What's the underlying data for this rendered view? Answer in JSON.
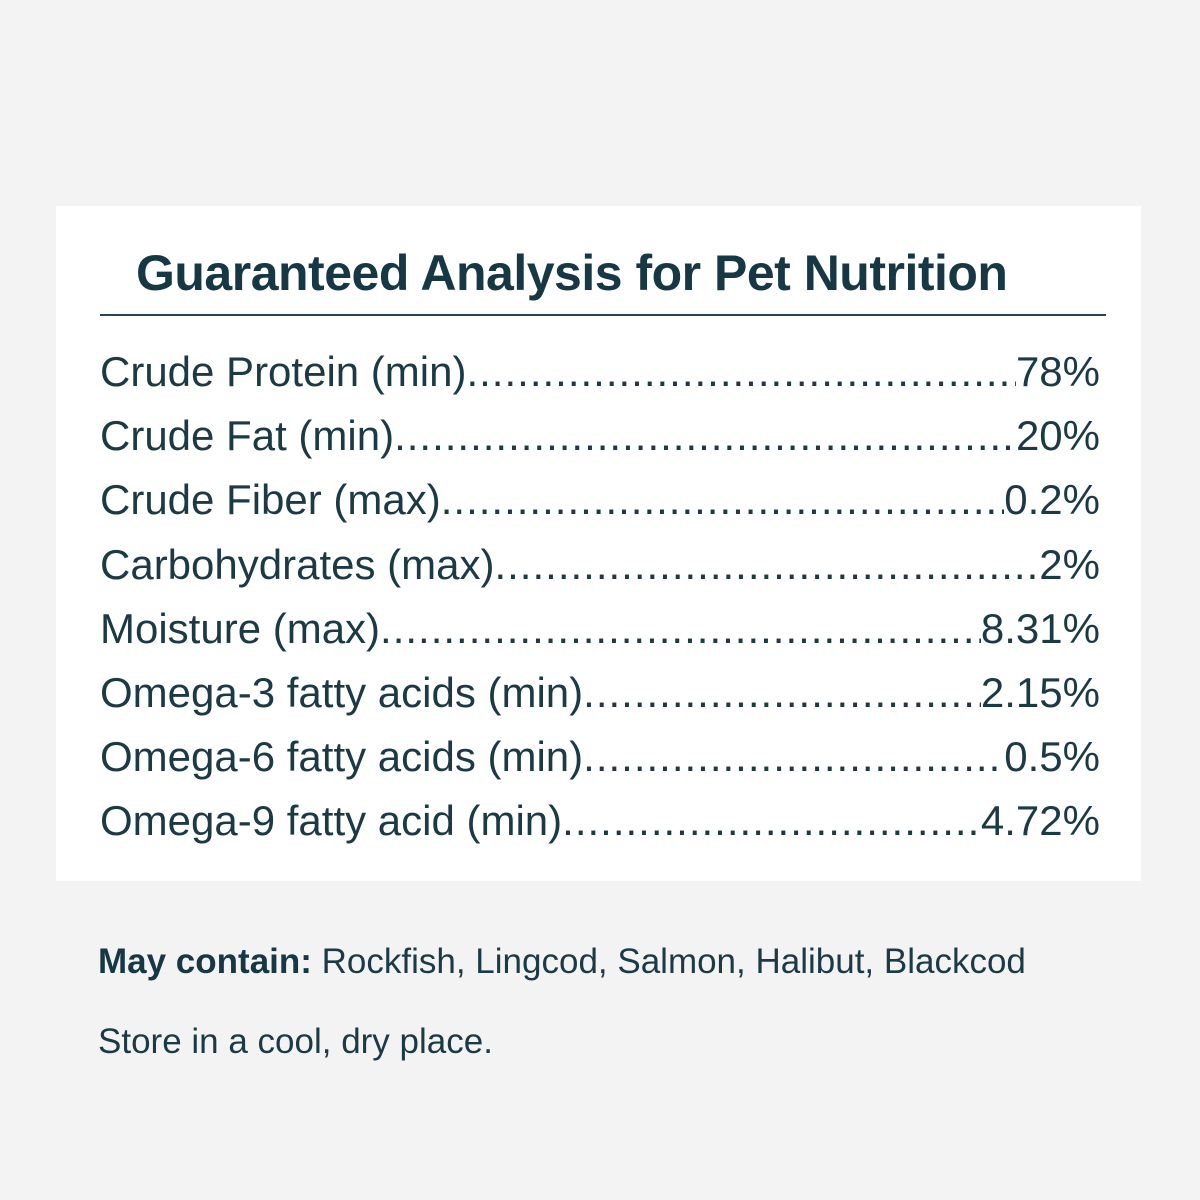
{
  "label": {
    "title": "Guaranteed Analysis for Pet Nutrition",
    "rows": [
      {
        "name": "Crude Protein (min)",
        "value": "78%"
      },
      {
        "name": "Crude Fat (min)",
        "value": "20%"
      },
      {
        "name": "Crude Fiber (max)",
        "value": "0.2%"
      },
      {
        "name": "Carbohydrates (max)",
        "value": "2%"
      },
      {
        "name": "Moisture (max)",
        "value": "8.31%"
      },
      {
        "name": "Omega-3 fatty acids (min)",
        "value": "2.15%"
      },
      {
        "name": "Omega-6 fatty acids (min)",
        "value": "0.5%"
      },
      {
        "name": "Omega-9 fatty acid (min)",
        "value": "4.72%"
      }
    ]
  },
  "contains": {
    "label": "May contain:",
    "text": " Rockfish, Lingcod, Salmon, Halibut, Blackcod"
  },
  "storage": {
    "text": "Store in a cool, dry place."
  },
  "colors": {
    "background": "#f3f3f3",
    "panel": "#ffffff",
    "text": "#1b3a46"
  }
}
